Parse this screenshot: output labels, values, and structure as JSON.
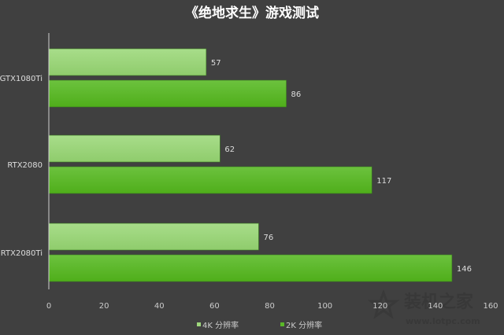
{
  "chart_data": {
    "type": "bar",
    "orientation": "horizontal",
    "title": "《绝地求生》游戏测试",
    "categories": [
      "GTX1080Ti",
      "RTX2080",
      "RTX2080Ti"
    ],
    "series": [
      {
        "name": "4K 分辨率",
        "values": [
          57,
          62,
          76
        ],
        "color": "#9ed77c"
      },
      {
        "name": "2K 分辨率",
        "values": [
          86,
          117,
          146
        ],
        "color": "#5ab828"
      }
    ],
    "xlim": [
      0,
      160
    ],
    "xticks": [
      0,
      20,
      40,
      60,
      80,
      100,
      120,
      140,
      160
    ],
    "grid": false,
    "legend": "bottom",
    "background": "#404040"
  },
  "watermark": {
    "text": "装机之家",
    "url": "www.lotpc.com"
  }
}
